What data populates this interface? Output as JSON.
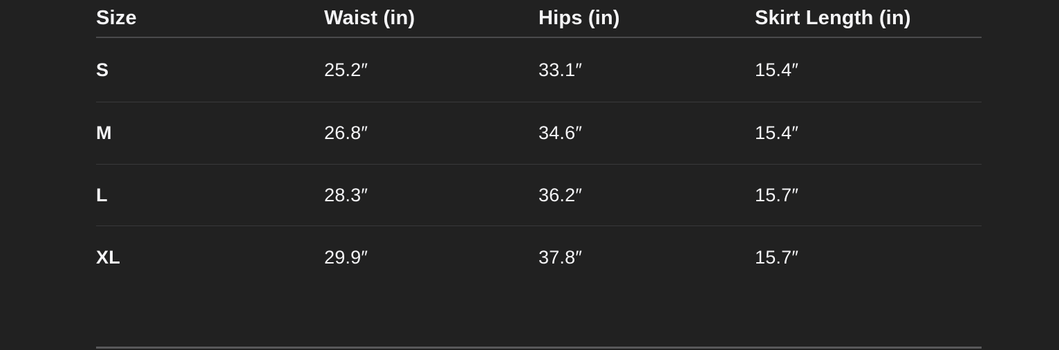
{
  "chart_data": {
    "type": "table",
    "columns": [
      "Size",
      "Waist (in)",
      "Hips (in)",
      "Skirt Length (in)"
    ],
    "rows": [
      [
        "S",
        "25.2″",
        "33.1″",
        "15.4″"
      ],
      [
        "M",
        "26.8″",
        "34.6″",
        "15.4″"
      ],
      [
        "L",
        "28.3″",
        "36.2″",
        "15.7″"
      ],
      [
        "XL",
        "29.9″",
        "37.8″",
        "15.7″"
      ]
    ],
    "units": "inches",
    "layout": "dark size-chart table, left-aligned columns, horizontal row dividers only"
  },
  "colors": {
    "background": "#212121",
    "text": "#f5f5f7",
    "header_border": "#4a4a4c",
    "row_divider": "#39393b",
    "bottom_rule": "#58585a"
  }
}
